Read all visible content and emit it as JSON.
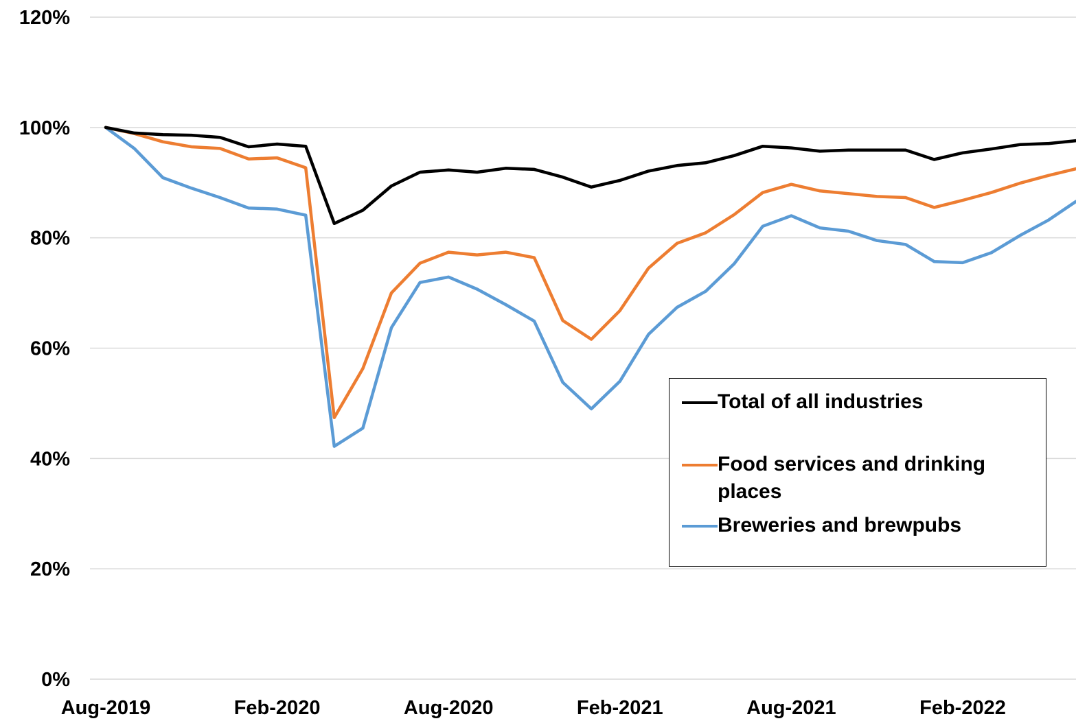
{
  "chart_data": {
    "type": "line",
    "title": "",
    "xlabel": "",
    "ylabel": "",
    "ylim": [
      0,
      120
    ],
    "y_unit": "%",
    "y_ticks": [
      0,
      20,
      40,
      60,
      80,
      100,
      120
    ],
    "y_tick_labels": [
      "0%",
      "20%",
      "40%",
      "60%",
      "80%",
      "100%",
      "120%"
    ],
    "x": [
      "Aug-2019",
      "Sep-2019",
      "Oct-2019",
      "Nov-2019",
      "Dec-2019",
      "Jan-2020",
      "Feb-2020",
      "Mar-2020",
      "Apr-2020",
      "May-2020",
      "Jun-2020",
      "Jul-2020",
      "Aug-2020",
      "Sep-2020",
      "Oct-2020",
      "Nov-2020",
      "Dec-2020",
      "Jan-2021",
      "Feb-2021",
      "Mar-2021",
      "Apr-2021",
      "May-2021",
      "Jun-2021",
      "Jul-2021",
      "Aug-2021",
      "Sep-2021",
      "Oct-2021",
      "Nov-2021",
      "Dec-2021",
      "Jan-2022",
      "Feb-2022",
      "Mar-2022",
      "Apr-2022",
      "May-2022",
      "Jun-2022"
    ],
    "x_tick_labels": [
      "Aug-2019",
      "Feb-2020",
      "Aug-2020",
      "Feb-2021",
      "Aug-2021",
      "Feb-2022"
    ],
    "grid": true,
    "legend_position": "lower-right",
    "series": [
      {
        "name": "Total of all industries",
        "color": "#000000",
        "values": [
          100,
          99.0,
          98.7,
          98.6,
          98.2,
          96.5,
          97.0,
          96.6,
          82.6,
          85.0,
          89.4,
          91.9,
          92.3,
          91.9,
          92.6,
          92.4,
          91.0,
          89.2,
          90.4,
          92.1,
          93.1,
          93.6,
          94.9,
          96.6,
          96.3,
          95.7,
          95.9,
          95.9,
          95.9,
          94.2,
          95.4,
          96.1,
          96.9,
          97.1,
          97.6
        ]
      },
      {
        "name": "Food services and drinking places",
        "color": "#ed7d31",
        "values": [
          100,
          98.9,
          97.4,
          96.5,
          96.2,
          94.3,
          94.5,
          92.7,
          47.4,
          56.3,
          70.0,
          75.4,
          77.4,
          76.9,
          77.4,
          76.4,
          65.0,
          61.6,
          66.8,
          74.5,
          79.0,
          80.9,
          84.2,
          88.2,
          89.7,
          88.5,
          88.0,
          87.5,
          87.3,
          85.5,
          86.8,
          88.2,
          89.9,
          91.3,
          92.5
        ]
      },
      {
        "name": "Breweries and brewpubs",
        "color": "#5b9bd5",
        "values": [
          100,
          96.2,
          90.9,
          89.0,
          87.3,
          85.4,
          85.2,
          84.1,
          42.2,
          45.5,
          63.7,
          71.9,
          72.9,
          70.7,
          67.9,
          64.9,
          53.8,
          49.0,
          54.0,
          62.5,
          67.4,
          70.3,
          75.3,
          82.1,
          84.0,
          81.8,
          81.2,
          79.5,
          78.8,
          75.7,
          75.5,
          77.3,
          80.4,
          83.2,
          86.6
        ]
      }
    ]
  }
}
